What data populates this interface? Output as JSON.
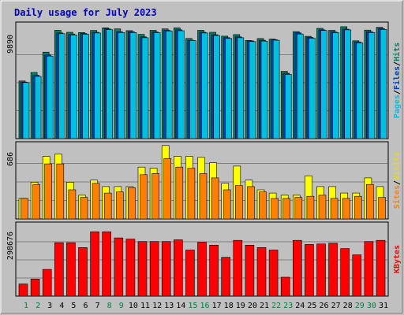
{
  "chart_data": [
    {
      "type": "bar",
      "title": "Daily usage for July 2023",
      "panel": "top",
      "ylabel_parts": [
        {
          "text": "Pages",
          "color": "#00C0E0"
        },
        {
          "text": "Files",
          "color": "#0040C0"
        },
        {
          "text": "Hits",
          "color": "#008060"
        }
      ],
      "y_tick_label": "9890",
      "ylim": [
        0,
        9890
      ],
      "grid": true,
      "categories": [
        "1",
        "2",
        "3",
        "4",
        "5",
        "6",
        "7",
        "8",
        "9",
        "10",
        "11",
        "12",
        "13",
        "14",
        "15",
        "16",
        "17",
        "18",
        "19",
        "20",
        "21",
        "22",
        "23",
        "24",
        "25",
        "26",
        "27",
        "28",
        "29",
        "30",
        "31"
      ],
      "series": [
        {
          "name": "Hits",
          "color": "#008060",
          "values": [
            5100,
            5850,
            7650,
            9580,
            9400,
            9380,
            9560,
            9800,
            9700,
            9550,
            9220,
            9580,
            9700,
            9800,
            8860,
            9580,
            9400,
            9060,
            9200,
            8680,
            8850,
            8800,
            5950,
            9460,
            9050,
            9750,
            9580,
            9900,
            8650,
            9600,
            9850
          ]
        },
        {
          "name": "Files",
          "color": "#0040C0",
          "values": [
            5000,
            5600,
            7400,
            9350,
            9250,
            9300,
            9400,
            9700,
            9450,
            9450,
            9000,
            9420,
            9580,
            9620,
            8700,
            9400,
            9190,
            8930,
            9000,
            8640,
            8700,
            8740,
            5780,
            9350,
            8950,
            9620,
            9430,
            9680,
            8550,
            9450,
            9720
          ]
        },
        {
          "name": "Pages",
          "color": "#00C0E0",
          "values": [
            4960,
            5500,
            7300,
            9280,
            9170,
            9230,
            9340,
            9630,
            9380,
            9380,
            8920,
            9370,
            9520,
            9540,
            8670,
            9340,
            9120,
            8860,
            8920,
            8580,
            8620,
            8700,
            5680,
            9250,
            8880,
            9560,
            9370,
            9620,
            8470,
            9380,
            9650
          ]
        }
      ]
    },
    {
      "type": "bar",
      "panel": "middle",
      "ylabel_parts": [
        {
          "text": "Sites",
          "color": "#FF8000"
        },
        {
          "text": "Visits",
          "color": "#E0E000"
        }
      ],
      "y_tick_label": "686",
      "ylim": [
        0,
        686
      ],
      "grid": true,
      "categories": [
        "1",
        "2",
        "3",
        "4",
        "5",
        "6",
        "7",
        "8",
        "9",
        "10",
        "11",
        "12",
        "13",
        "14",
        "15",
        "16",
        "17",
        "18",
        "19",
        "20",
        "21",
        "22",
        "23",
        "24",
        "25",
        "26",
        "27",
        "28",
        "29",
        "30",
        "31"
      ],
      "series": [
        {
          "name": "Visits",
          "color": "#FFFF00",
          "values": [
            190,
            340,
            580,
            600,
            340,
            220,
            360,
            300,
            300,
            300,
            480,
            470,
            680,
            580,
            580,
            570,
            520,
            330,
            490,
            360,
            270,
            240,
            220,
            220,
            400,
            300,
            300,
            240,
            240,
            380,
            300
          ]
        },
        {
          "name": "Sites",
          "color": "#FF8000",
          "values": [
            190,
            320,
            510,
            510,
            270,
            200,
            330,
            240,
            250,
            290,
            410,
            420,
            560,
            480,
            470,
            420,
            380,
            270,
            310,
            300,
            250,
            190,
            190,
            200,
            210,
            220,
            190,
            190,
            210,
            320,
            200
          ]
        }
      ]
    },
    {
      "type": "bar",
      "panel": "bottom",
      "ylabel_parts": [
        {
          "text": "KBytes",
          "color": "#FF0000"
        }
      ],
      "y_tick_label": "298676",
      "ylim": [
        0,
        298676
      ],
      "grid": true,
      "categories": [
        "1",
        "2",
        "3",
        "4",
        "5",
        "6",
        "7",
        "8",
        "9",
        "10",
        "11",
        "12",
        "13",
        "14",
        "15",
        "16",
        "17",
        "18",
        "19",
        "20",
        "21",
        "22",
        "23",
        "24",
        "25",
        "26",
        "27",
        "28",
        "29",
        "30",
        "31"
      ],
      "series": [
        {
          "name": "KBytes",
          "color": "#FF0000",
          "values": [
            50000,
            70000,
            110000,
            220000,
            220000,
            200000,
            265000,
            265000,
            240000,
            235000,
            225000,
            225000,
            225000,
            232000,
            190000,
            222000,
            210000,
            160000,
            230000,
            210000,
            200000,
            190000,
            78000,
            230000,
            213000,
            215000,
            218000,
            196000,
            170000,
            225000,
            230000
          ]
        }
      ]
    }
  ],
  "x_axis": {
    "labels": [
      "1",
      "2",
      "3",
      "4",
      "5",
      "6",
      "7",
      "8",
      "9",
      "10",
      "11",
      "12",
      "13",
      "14",
      "15",
      "16",
      "17",
      "18",
      "19",
      "20",
      "21",
      "22",
      "23",
      "24",
      "25",
      "26",
      "27",
      "28",
      "29",
      "30",
      "31"
    ],
    "weekend_days": [
      1,
      2,
      8,
      9,
      15,
      16,
      22,
      23,
      29,
      30
    ],
    "weekday_color": "#000000",
    "weekend_color": "#008040"
  },
  "colors": {
    "background": "#C0C0C0",
    "plot_background": "#C0C0C0",
    "title": "#0000C0",
    "gridline": "#808080",
    "border_light": "#FFFFFF",
    "border_dark": "#808080"
  }
}
